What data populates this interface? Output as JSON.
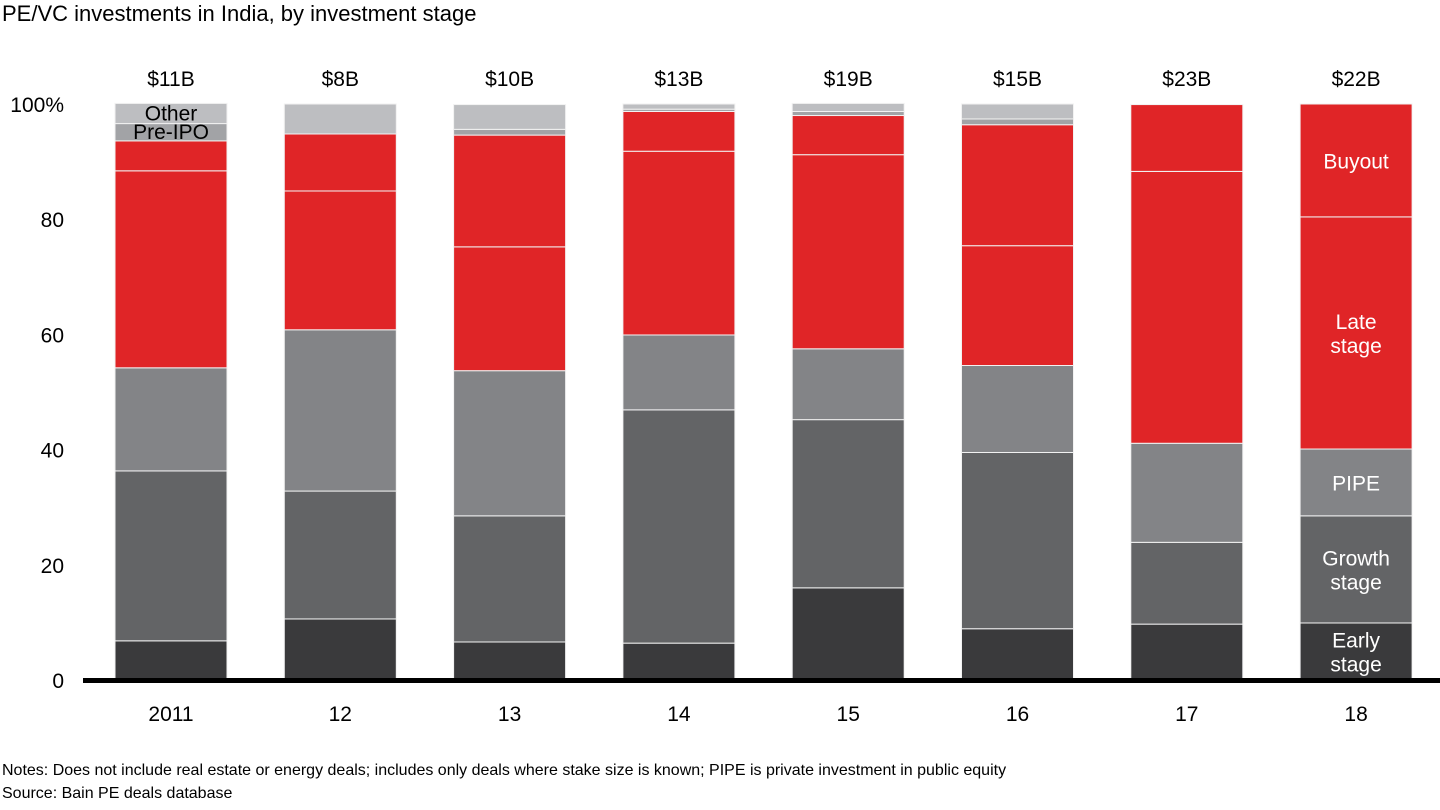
{
  "chart_data": {
    "type": "bar",
    "stacked": true,
    "title": "PE/VC investments in India, by investment stage",
    "xlabel": "",
    "ylabel": "",
    "ylim": [
      0,
      100
    ],
    "y_ticks": [
      0,
      20,
      40,
      60,
      80,
      100
    ],
    "y_tick_labels": [
      "0",
      "20",
      "40",
      "60",
      "80",
      "100%"
    ],
    "grid": false,
    "legend": "inline-labels-on-last-bar",
    "categories": [
      "2011",
      "12",
      "13",
      "14",
      "15",
      "16",
      "17",
      "18"
    ],
    "totals": [
      "$11B",
      "$8B",
      "$10B",
      "$13B",
      "$19B",
      "$15B",
      "$23B",
      "$22B"
    ],
    "series": [
      {
        "name": "Early stage",
        "color": "#3a3a3c",
        "values": [
          6.8,
          10.6,
          6.6,
          6.4,
          16.0,
          8.9,
          9.7,
          9.9
        ]
      },
      {
        "name": "Growth stage",
        "color": "#636466",
        "values": [
          29.5,
          22.2,
          21.9,
          40.5,
          29.2,
          30.6,
          14.2,
          18.6
        ]
      },
      {
        "name": "PIPE",
        "color": "#838487",
        "values": [
          17.9,
          28.0,
          25.2,
          13.0,
          12.3,
          15.1,
          17.2,
          11.6
        ]
      },
      {
        "name": "Late stage",
        "color": "#e02527",
        "values": [
          34.2,
          24.1,
          21.5,
          31.9,
          33.7,
          20.8,
          47.2,
          40.3
        ]
      },
      {
        "name": "Buyout",
        "color": "#e02527",
        "values": [
          5.2,
          9.9,
          19.4,
          6.9,
          6.8,
          21.0,
          11.6,
          19.6
        ]
      },
      {
        "name": "Pre-IPO",
        "color": "#a2a3a6",
        "values": [
          3.0,
          0,
          1.0,
          0.4,
          0.7,
          1.0,
          0,
          0
        ]
      },
      {
        "name": "Other",
        "color": "#bdbec1",
        "values": [
          3.5,
          5.2,
          4.3,
          0.9,
          1.4,
          2.6,
          0,
          0
        ]
      }
    ],
    "inline_labels": {
      "last_bar": [
        {
          "series": "Buyout",
          "lines": [
            "Buyout"
          ]
        },
        {
          "series": "Late stage",
          "lines": [
            "Late",
            "stage"
          ]
        },
        {
          "series": "PIPE",
          "lines": [
            "PIPE"
          ]
        },
        {
          "series": "Growth stage",
          "lines": [
            "Growth",
            "stage"
          ]
        },
        {
          "series": "Early stage",
          "lines": [
            "Early",
            "stage"
          ]
        }
      ],
      "first_bar": [
        {
          "series": "Other",
          "lines": [
            "Other"
          ]
        },
        {
          "series": "Pre-IPO",
          "lines": [
            "Pre-IPO"
          ]
        }
      ]
    }
  },
  "footer": {
    "notes": "Notes: Does not include real estate or energy deals; includes only deals where stake size is known; PIPE is private investment in public equity",
    "source": "Source: Bain PE deals database"
  }
}
